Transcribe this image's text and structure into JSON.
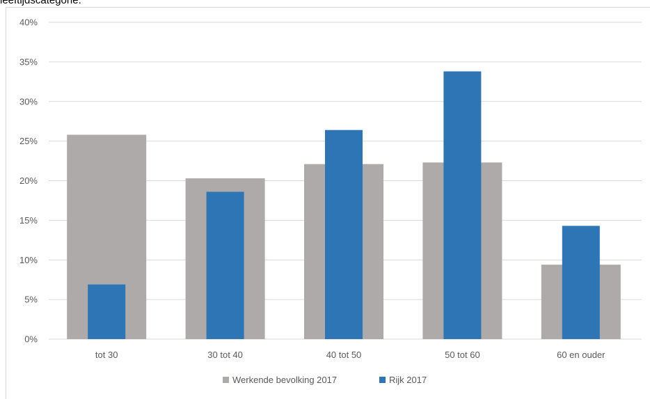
{
  "caption": "leeftijdscategorie.",
  "chart_data": {
    "type": "bar",
    "categories": [
      "tot 30",
      "30 tot 40",
      "40 tot 50",
      "50 tot 60",
      "60 en ouder"
    ],
    "series": [
      {
        "name": "Werkende bevolking 2017",
        "values": [
          25.8,
          20.3,
          22.1,
          22.3,
          9.4
        ],
        "color": "#aeaaaa"
      },
      {
        "name": "Rijk 2017",
        "values": [
          6.9,
          18.6,
          26.4,
          33.8,
          14.3
        ],
        "color": "#2e75b6"
      }
    ],
    "ylim": [
      0,
      40
    ],
    "yticks": [
      "0%",
      "5%",
      "10%",
      "15%",
      "20%",
      "25%",
      "30%",
      "35%",
      "40%"
    ],
    "grid": true,
    "legend": "bottom",
    "overlap": true
  }
}
